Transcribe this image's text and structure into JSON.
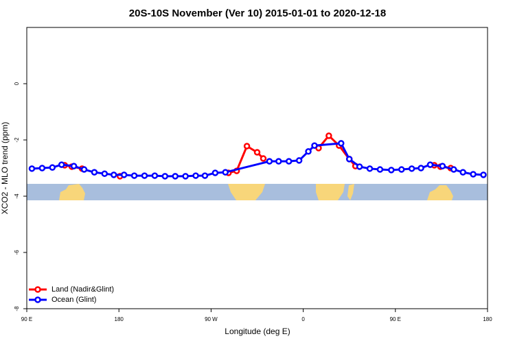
{
  "chart_data": {
    "type": "line",
    "title": "20S-10S November (Ver 10)   2015-01-01 to 2020-12-18",
    "xlabel": "Longitude (deg E)",
    "ylabel": "XCO2 - MLO trend (ppm)",
    "xlim": [
      90,
      540
    ],
    "xticks": [
      {
        "value": 90,
        "label": "90 E"
      },
      180,
      {
        "value": 270,
        "label": "90 W"
      },
      {
        "value": 360,
        "label": "0"
      },
      {
        "value": 450,
        "label": "90 E"
      },
      {
        "value": 540,
        "label": "180"
      }
    ],
    "ylim": [
      -8,
      2
    ],
    "yticks": [
      -8,
      -6,
      -4,
      -2,
      0
    ],
    "legend": "bottom-left",
    "series": [
      {
        "name": "Land (Nadir&Glint)",
        "color": "#ff0000",
        "x": [
          127,
          134,
          144,
          null,
          181,
          null,
          287,
          295,
          305,
          315,
          321,
          null,
          375,
          385,
          395,
          405,
          411,
          null,
          488,
          494,
          504
        ],
        "values": [
          -2.9,
          -2.95,
          -3.02,
          null,
          -3.29,
          null,
          -3.17,
          -3.1,
          -2.22,
          -2.44,
          -2.66,
          null,
          -2.29,
          -1.85,
          -2.2,
          -2.68,
          -2.93,
          null,
          -2.9,
          -2.95,
          -3.0
        ]
      },
      {
        "name": "Ocean (Glint)",
        "color": "#0000ff",
        "x": [
          95,
          105,
          115,
          124,
          136,
          146,
          156,
          166,
          175,
          185,
          195,
          205,
          215,
          225,
          235,
          245,
          255,
          264,
          274,
          284,
          327,
          336,
          346,
          356,
          365,
          371,
          397,
          405,
          415,
          425,
          435,
          446,
          456,
          466,
          475,
          484,
          496,
          507,
          516,
          526,
          536
        ],
        "values": [
          -3.02,
          -3.0,
          -2.98,
          -2.88,
          -2.93,
          -3.05,
          -3.15,
          -3.2,
          -3.24,
          -3.24,
          -3.27,
          -3.27,
          -3.27,
          -3.29,
          -3.29,
          -3.29,
          -3.27,
          -3.27,
          -3.17,
          -3.15,
          -2.76,
          -2.76,
          -2.76,
          -2.73,
          -2.41,
          -2.2,
          -2.12,
          -2.68,
          -2.95,
          -3.02,
          -3.05,
          -3.07,
          -3.05,
          -3.02,
          -3.0,
          -2.88,
          -2.93,
          -3.05,
          -3.15,
          -3.22,
          -3.24
        ]
      }
    ]
  }
}
